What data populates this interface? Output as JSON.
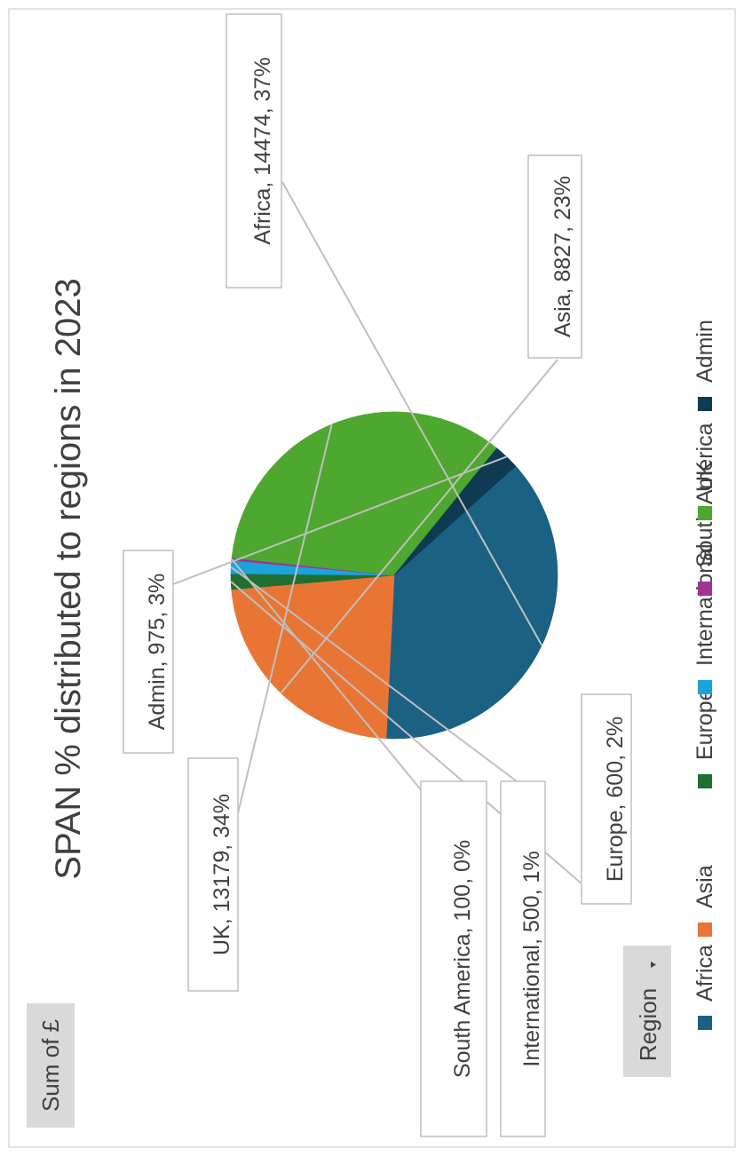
{
  "pivot": {
    "value_field": "Sum of £",
    "row_field": "Region",
    "dropdown_icon": "triangle-down-icon"
  },
  "chart_data": {
    "type": "pie",
    "title": "SPAN % distributed to regions in 2023",
    "categories": [
      "Africa",
      "Asia",
      "Europe",
      "International",
      "South America",
      "UK",
      "Admin"
    ],
    "values": [
      14474,
      8827,
      600,
      500,
      100,
      13179,
      975
    ],
    "percent_labels": [
      "37%",
      "23%",
      "2%",
      "1%",
      "0%",
      "34%",
      "3%"
    ],
    "data_labels": [
      "Africa, 14474, 37%",
      "Asia, 8827, 23%",
      "Europe, 600, 2%",
      "International, 500, 1%",
      "South America, 100, 0%",
      "UK, 13179, 34%",
      "Admin, 975, 3%"
    ],
    "colors": [
      "#1b6183",
      "#e97534",
      "#1f6f30",
      "#1ba3dc",
      "#a13393",
      "#4ea72e",
      "#0e3a52"
    ],
    "legend": {
      "position": "bottom",
      "entries": [
        "Africa",
        "Asia",
        "Europe",
        "International",
        "South America",
        "UK",
        "Admin"
      ]
    },
    "orientation": "rotated-90-ccw"
  }
}
